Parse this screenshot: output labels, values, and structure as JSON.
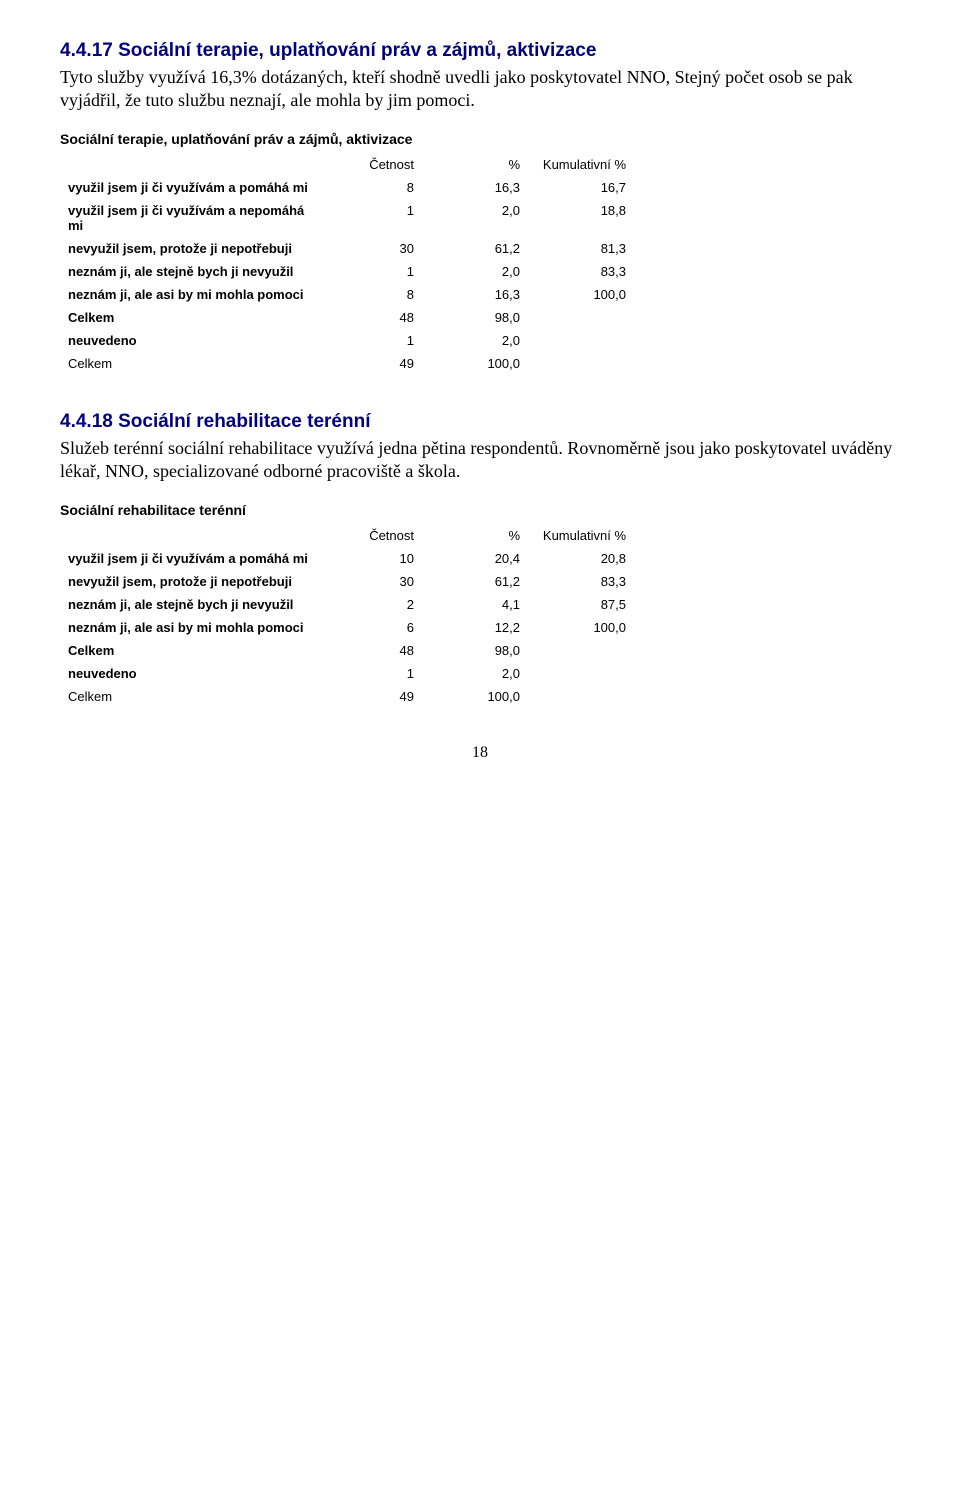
{
  "section1": {
    "heading": "4.4.17 Sociální terapie, uplatňování práv a zájmů, aktivizace",
    "paragraph": "Tyto služby využívá 16,3% dotázaných, kteří shodně uvedli jako poskytovatel NNO, Stejný počet osob se pak vyjádřil, že tuto službu neznají, ale mohla by jim pomoci.",
    "table_title": "Sociální terapie, uplatňování práv a zájmů, aktivizace",
    "col_headers": [
      "Četnost",
      "%",
      "Kumulativní %"
    ],
    "rows": [
      {
        "label": "využil jsem ji  či využívám a pomáhá mi",
        "c1": "8",
        "c2": "16,3",
        "c3": "16,7"
      },
      {
        "label": "využil jsem ji  či využívám a nepomáhá mi",
        "c1": "1",
        "c2": "2,0",
        "c3": "18,8"
      },
      {
        "label": "nevyužil jsem, protože ji nepotřebuji",
        "c1": "30",
        "c2": "61,2",
        "c3": "81,3"
      },
      {
        "label": "neznám ji, ale stejně bych ji nevyužil",
        "c1": "1",
        "c2": "2,0",
        "c3": "83,3"
      },
      {
        "label": "neznám ji, ale asi by mi mohla pomoci",
        "c1": "8",
        "c2": "16,3",
        "c3": "100,0"
      },
      {
        "label": "Celkem",
        "c1": "48",
        "c2": "98,0",
        "c3": ""
      },
      {
        "label": "neuvedeno",
        "c1": "1",
        "c2": "2,0",
        "c3": ""
      }
    ],
    "total": {
      "label": "Celkem",
      "c1": "49",
      "c2": "100,0",
      "c3": ""
    }
  },
  "section2": {
    "heading": "4.4.18 Sociální rehabilitace terénní",
    "paragraph": "Služeb terénní sociální rehabilitace využívá jedna pětina respondentů. Rovnoměrně jsou jako poskytovatel uváděny lékař, NNO, specializované odborné pracoviště a škola.",
    "table_title": "Sociální rehabilitace terénní",
    "col_headers": [
      "Četnost",
      "%",
      "Kumulativní %"
    ],
    "rows": [
      {
        "label": "využil jsem ji  či využívám a pomáhá mi",
        "c1": "10",
        "c2": "20,4",
        "c3": "20,8"
      },
      {
        "label": "nevyužil jsem, protože ji nepotřebuji",
        "c1": "30",
        "c2": "61,2",
        "c3": "83,3"
      },
      {
        "label": "neznám ji, ale stejně bych ji nevyužil",
        "c1": "2",
        "c2": "4,1",
        "c3": "87,5"
      },
      {
        "label": "neznám ji, ale asi by mi mohla pomoci",
        "c1": "6",
        "c2": "12,2",
        "c3": "100,0"
      },
      {
        "label": "Celkem",
        "c1": "48",
        "c2": "98,0",
        "c3": ""
      },
      {
        "label": "neuvedeno",
        "c1": "1",
        "c2": "2,0",
        "c3": ""
      }
    ],
    "total": {
      "label": "Celkem",
      "c1": "49",
      "c2": "100,0",
      "c3": ""
    }
  },
  "page_number": "18"
}
